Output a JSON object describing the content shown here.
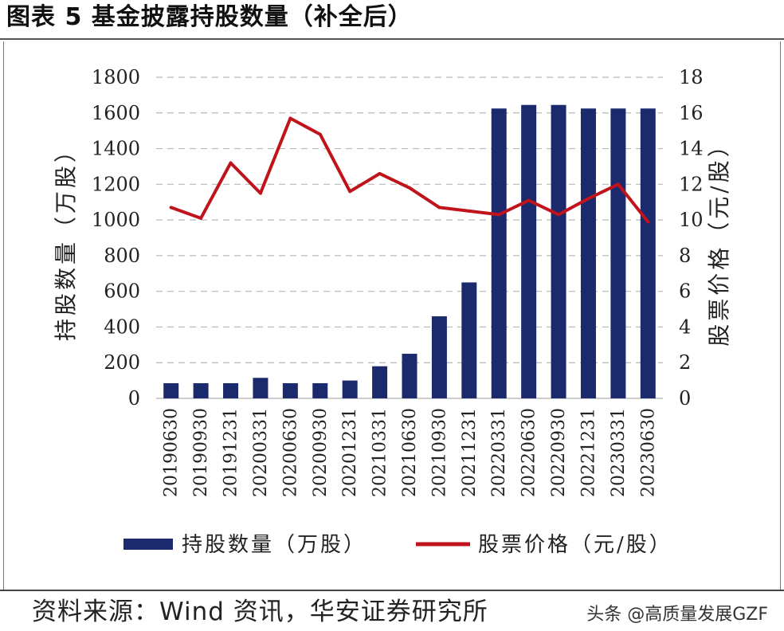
{
  "header": {
    "title": "图表 5  基金披露持股数量（补全后）"
  },
  "footer": {
    "source": "资料来源：Wind 资讯，华安证券研究所",
    "watermark": "头条 @高质量发展GZF"
  },
  "chart_data": {
    "type": "bar",
    "categories": [
      "20190630",
      "20190930",
      "20191231",
      "20200331",
      "20200630",
      "20200930",
      "20201231",
      "20210331",
      "20210630",
      "20210930",
      "20211231",
      "20220331",
      "20220630",
      "20220930",
      "20221231",
      "20230331",
      "20230630"
    ],
    "series": [
      {
        "name": "持股数量（万股）",
        "type": "bar",
        "axis": "left",
        "color": "#1a2a6c",
        "values": [
          85,
          85,
          85,
          115,
          85,
          85,
          100,
          180,
          250,
          460,
          650,
          1625,
          1645,
          1645,
          1625,
          1625,
          1625
        ]
      },
      {
        "name": "股票价格（元/股）",
        "type": "line",
        "axis": "right",
        "color": "#c0141c",
        "values": [
          10.7,
          10.1,
          13.2,
          11.5,
          15.7,
          14.8,
          11.6,
          12.6,
          11.8,
          10.7,
          10.5,
          10.3,
          11.1,
          10.3,
          11.2,
          12.0,
          9.9
        ]
      }
    ],
    "ylabel": "持股数量（万股）",
    "y2label": "股票价格（元/股）",
    "ylim": [
      0,
      1800
    ],
    "y2lim": [
      0,
      18
    ],
    "yticks": [
      "0",
      "200",
      "400",
      "600",
      "800",
      "1000",
      "1200",
      "1400",
      "1600",
      "1800"
    ],
    "y2ticks": [
      "0",
      "2",
      "4",
      "6",
      "8",
      "10",
      "12",
      "14",
      "16",
      "18"
    ],
    "grid": true,
    "legend": "bottom"
  }
}
